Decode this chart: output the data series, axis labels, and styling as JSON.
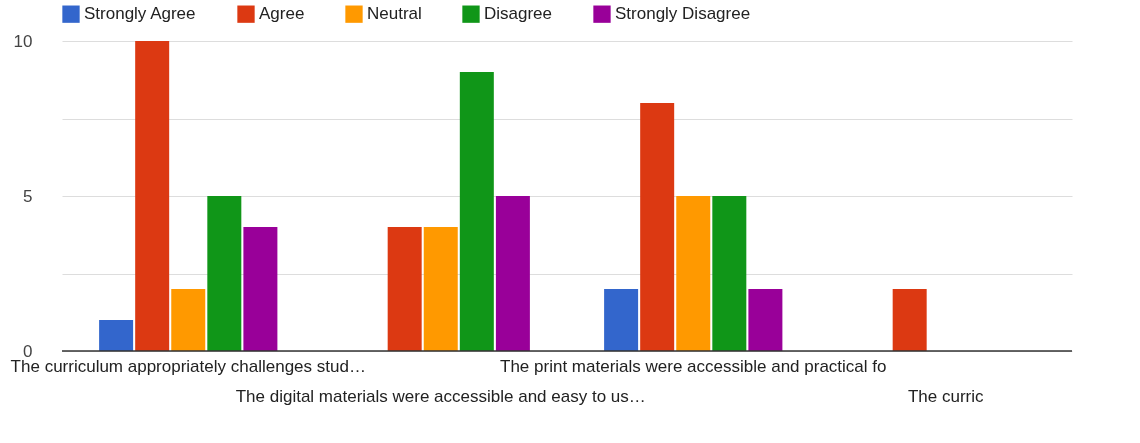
{
  "chart_data": {
    "type": "bar",
    "categories": [
      "The curriculum appropriately challenges stud…",
      "The digital materials were accessible and easy to us…",
      "The print materials were accessible and practical fo",
      "The curric"
    ],
    "series": [
      {
        "name": "Strongly Agree",
        "color": "#3366cc",
        "values": [
          1,
          0,
          2,
          0
        ]
      },
      {
        "name": "Agree",
        "color": "#dc3912",
        "values": [
          10,
          4,
          8,
          2
        ]
      },
      {
        "name": "Neutral",
        "color": "#ff9900",
        "values": [
          2,
          4,
          5,
          null
        ]
      },
      {
        "name": "Disagree",
        "color": "#109618",
        "values": [
          5,
          9,
          5,
          null
        ]
      },
      {
        "name": "Strongly Disagree",
        "color": "#990099",
        "values": [
          4,
          5,
          2,
          null
        ]
      }
    ],
    "ylim": [
      0,
      10
    ],
    "yticks": [
      0,
      {
        "value": 2.5,
        "label": null
      },
      5,
      {
        "value": 7.5,
        "label": null
      },
      10
    ],
    "grid": "y",
    "legend": "top"
  }
}
